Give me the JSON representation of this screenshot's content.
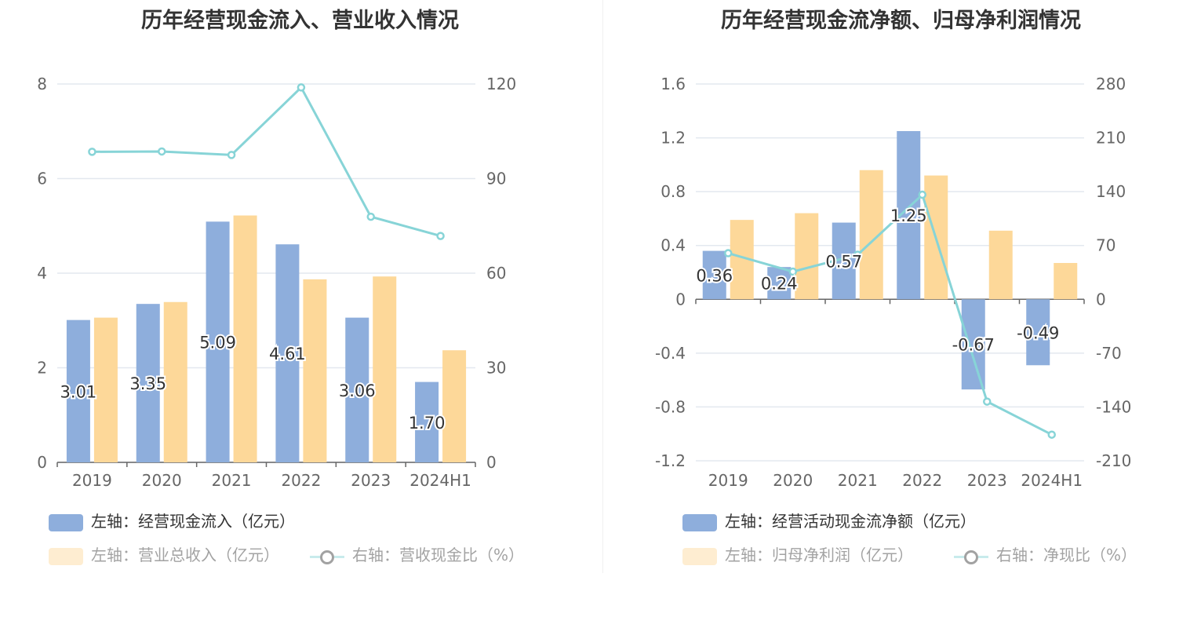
{
  "colors": {
    "bar1": "#8eaedc",
    "bar2": "#fdd899",
    "line": "#87d4d7",
    "axis": "#666666",
    "grid": "#e3e8ef",
    "text": "#333333"
  },
  "chart_data": [
    {
      "type": "bar",
      "title": "历年经营现金流入、营业收入情况",
      "categories": [
        "2019",
        "2020",
        "2021",
        "2022",
        "2023",
        "2024H1"
      ],
      "y_left": {
        "min": 0,
        "max": 8,
        "ticks": [
          "0",
          "2",
          "4",
          "6",
          "8"
        ]
      },
      "y_right": {
        "min": 0,
        "max": 120,
        "ticks": [
          "0",
          "30",
          "60",
          "90",
          "120"
        ]
      },
      "series": [
        {
          "name": "左轴：经营现金流入（亿元）",
          "axis": "left",
          "kind": "bar",
          "values": [
            3.01,
            3.35,
            5.09,
            4.61,
            3.06,
            1.7
          ],
          "labels": [
            "3.01",
            "3.35",
            "5.09",
            "4.61",
            "3.06",
            "1.70"
          ]
        },
        {
          "name": "左轴：营业总收入（亿元）",
          "axis": "left",
          "kind": "bar",
          "values": [
            3.06,
            3.39,
            5.22,
            3.87,
            3.93,
            2.37
          ]
        },
        {
          "name": "右轴：营收现金比（%）",
          "axis": "right",
          "kind": "line",
          "values": [
            98.5,
            98.6,
            97.5,
            118.9,
            77.9,
            71.8
          ]
        }
      ],
      "legend_placement": "bottom"
    },
    {
      "type": "bar",
      "title": "历年经营现金流净额、归母净利润情况",
      "categories": [
        "2019",
        "2020",
        "2021",
        "2022",
        "2023",
        "2024H1"
      ],
      "y_left": {
        "min": -1.2,
        "max": 1.6,
        "ticks": [
          "-1.2",
          "-0.8",
          "-0.4",
          "0",
          "0.4",
          "0.8",
          "1.2",
          "1.6"
        ]
      },
      "y_right": {
        "min": -210,
        "max": 280,
        "ticks": [
          "-210",
          "-140",
          "-70",
          "0",
          "70",
          "140",
          "210",
          "280"
        ]
      },
      "series": [
        {
          "name": "左轴：经营活动现金流净额（亿元）",
          "axis": "left",
          "kind": "bar",
          "values": [
            0.36,
            0.24,
            0.57,
            1.25,
            -0.67,
            -0.49
          ],
          "labels": [
            "0.36",
            "0.24",
            "0.57",
            "1.25",
            "-0.67",
            "-0.49"
          ]
        },
        {
          "name": "左轴：归母净利润（亿元）",
          "axis": "left",
          "kind": "bar",
          "values": [
            0.59,
            0.64,
            0.96,
            0.92,
            0.51,
            0.27
          ]
        },
        {
          "name": "右轴：净现比（%）",
          "axis": "right",
          "kind": "line",
          "values": [
            60,
            36,
            58,
            136,
            -133,
            -176
          ]
        }
      ],
      "legend_placement": "bottom"
    }
  ]
}
